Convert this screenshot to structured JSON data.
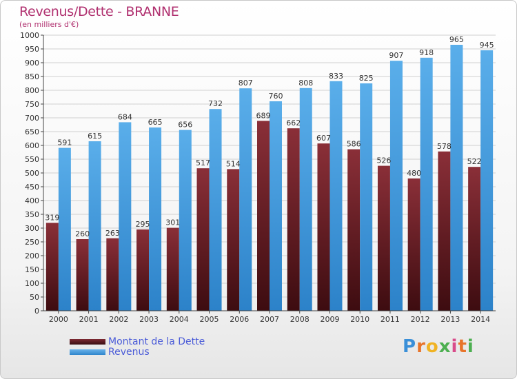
{
  "title": "Revenus/Dette - BRANNE",
  "subtitle": "(en milliers d'€)",
  "legend": {
    "debt_label": "Montant de la Dette",
    "revenue_label": "Revenus"
  },
  "logo_text": "Proxiti",
  "colors": {
    "debt": "#6e1f26",
    "revenue": "#4ea4e4",
    "title": "#b0306f",
    "legend_text": "#4a5bd8"
  },
  "chart_data": {
    "type": "bar",
    "title": "Revenus/Dette - BRANNE",
    "ylabel": "(en milliers d'€)",
    "categories": [
      "2000",
      "2001",
      "2002",
      "2003",
      "2004",
      "2005",
      "2006",
      "2007",
      "2008",
      "2009",
      "2010",
      "2011",
      "2012",
      "2013",
      "2014"
    ],
    "series": [
      {
        "name": "Montant de la Dette",
        "values": [
          319,
          260,
          263,
          295,
          301,
          517,
          514,
          689,
          662,
          607,
          586,
          526,
          480,
          578,
          522
        ]
      },
      {
        "name": "Revenus",
        "values": [
          591,
          615,
          684,
          665,
          656,
          732,
          807,
          760,
          808,
          833,
          825,
          907,
          918,
          965,
          945
        ]
      }
    ],
    "ylim": [
      0,
      1000
    ],
    "yticks": [
      0,
      50,
      100,
      150,
      200,
      250,
      300,
      350,
      400,
      450,
      500,
      550,
      600,
      650,
      700,
      750,
      800,
      850,
      900,
      950,
      1000
    ],
    "grid": true,
    "legend_position": "bottom-left"
  }
}
